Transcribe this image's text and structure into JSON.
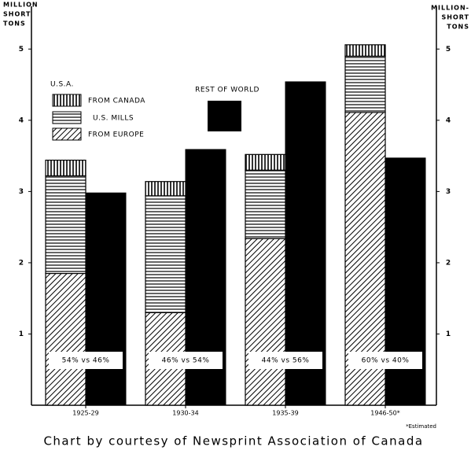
{
  "chart_data": {
    "type": "bar",
    "ylabel": [
      "MILLION",
      "SHORT",
      "TONS"
    ],
    "y2label": [
      "MILLION-",
      "SHORT",
      "TONS"
    ],
    "categories": [
      "1925-29",
      "1930-34",
      "1935-39",
      "1946-50*"
    ],
    "category_notes": [
      "54% vs 46%",
      "46% vs 54%",
      "44% vs 56%",
      "60% vs 40%"
    ],
    "legend_title": "U.S.A.",
    "series": [
      {
        "name": "FROM EUROPE",
        "color": "#000000",
        "pattern": "diagonal",
        "stacked": true,
        "values": [
          1.85,
          1.3,
          2.34,
          4.11
        ]
      },
      {
        "name": "U.S. MILLS",
        "color": "#000000",
        "pattern": "horizontal",
        "stacked": true,
        "values": [
          1.37,
          1.64,
          0.96,
          0.79
        ]
      },
      {
        "name": "FROM CANADA",
        "color": "#000000",
        "pattern": "vertical",
        "stacked": true,
        "values": [
          0.22,
          0.2,
          0.22,
          0.16
        ]
      },
      {
        "name": "REST OF WORLD",
        "color": "#000000",
        "pattern": "solid",
        "stacked": false,
        "values": [
          2.98,
          3.59,
          4.54,
          3.47
        ]
      }
    ],
    "ylim": [
      0,
      5.6
    ],
    "yticks": [
      1,
      2,
      3,
      4,
      5
    ],
    "y2lim": [
      0,
      5.6
    ],
    "y2ticks": [
      1,
      2,
      3,
      4,
      5
    ],
    "grid": false,
    "footnote": "*Estimated",
    "caption": "Chart by courtesy of Newsprint Association of Canada"
  }
}
